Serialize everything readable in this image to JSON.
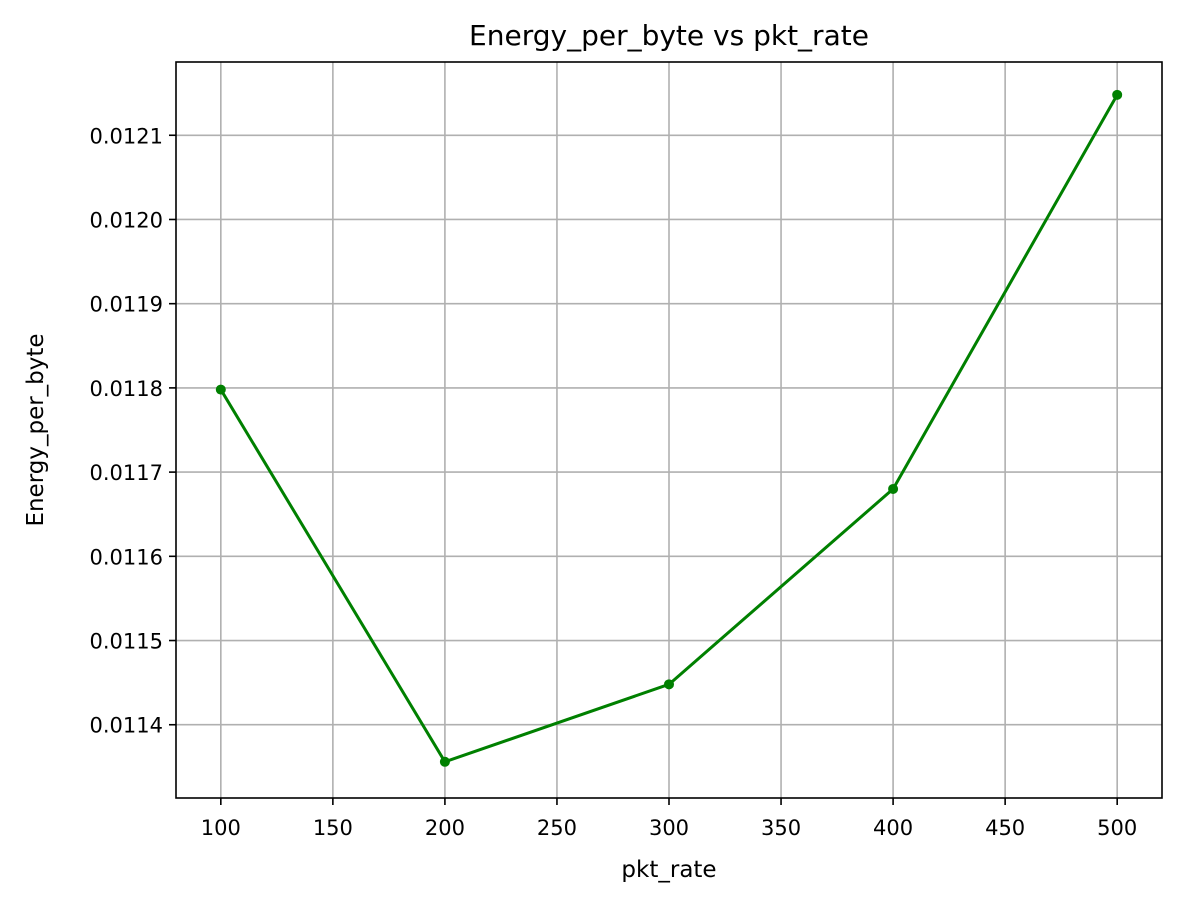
{
  "chart_data": {
    "type": "line",
    "title": "Energy_per_byte vs pkt_rate",
    "xlabel": "pkt_rate",
    "ylabel": "Energy_per_byte",
    "xlim": [
      80,
      520
    ],
    "ylim": [
      0.011313,
      0.012187
    ],
    "x_ticks": [
      100,
      150,
      200,
      250,
      300,
      350,
      400,
      450,
      500
    ],
    "y_ticks": [
      0.0114,
      0.0115,
      0.0116,
      0.0117,
      0.0118,
      0.0119,
      0.012,
      0.0121
    ],
    "y_tick_labels": [
      "0.0114",
      "0.0115",
      "0.0116",
      "0.0117",
      "0.0118",
      "0.0119",
      "0.0120",
      "0.0121"
    ],
    "grid": true,
    "series": [
      {
        "color": "#008000",
        "marker": "circle",
        "x": [
          100,
          200,
          300,
          400,
          500
        ],
        "y": [
          0.011798,
          0.011356,
          0.011448,
          0.01168,
          0.012148
        ]
      }
    ]
  }
}
